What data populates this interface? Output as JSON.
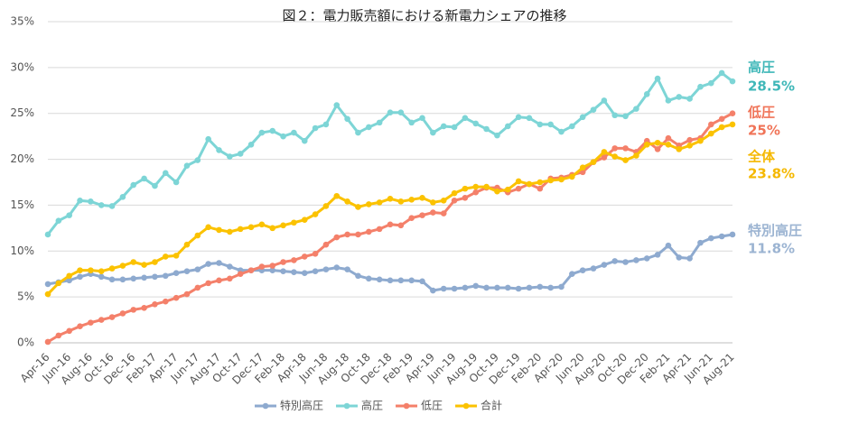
{
  "chart_data": {
    "type": "line",
    "title": "図２：電力販売額における新電力シェアの推移",
    "categories": [
      "Apr-16",
      null,
      "Jun-16",
      null,
      "Aug-16",
      null,
      "Oct-16",
      null,
      "Dec-16",
      null,
      "Feb-17",
      null,
      "Apr-17",
      null,
      "Jun-17",
      null,
      "Aug-17",
      null,
      "Oct-17",
      null,
      "Dec-17",
      null,
      "Feb-18",
      null,
      "Apr-18",
      null,
      "Jun-18",
      null,
      "Aug-18",
      null,
      "Oct-18",
      null,
      "Dec-18",
      null,
      "Feb-19",
      null,
      "Apr-19",
      null,
      "Jun-19",
      null,
      "Aug-19",
      null,
      "Oct-19",
      null,
      "Dec-19",
      null,
      "Feb-20",
      null,
      "Apr-20",
      null,
      "Jun-20",
      null,
      "Aug-20",
      null,
      "Oct-20",
      null,
      "Dec-20",
      null,
      "Feb-21",
      null,
      "Apr-21",
      null,
      "Jun-21",
      null,
      "Aug-21"
    ],
    "series": [
      {
        "name": "特別高圧",
        "color": "#8eaacf",
        "values": [
          6.4,
          6.6,
          6.8,
          7.2,
          7.5,
          7.2,
          6.9,
          6.9,
          7.0,
          7.1,
          7.2,
          7.3,
          7.6,
          7.8,
          8.0,
          8.6,
          8.7,
          8.3,
          7.9,
          7.9,
          7.9,
          7.9,
          7.8,
          7.7,
          7.6,
          7.8,
          8.0,
          8.2,
          8.0,
          7.3,
          7.0,
          6.9,
          6.8,
          6.8,
          6.8,
          6.7,
          5.7,
          5.9,
          5.9,
          6.0,
          6.2,
          6.0,
          6.0,
          6.0,
          5.9,
          6.0,
          6.1,
          6.0,
          6.1,
          7.5,
          7.9,
          8.1,
          8.5,
          8.9,
          8.8,
          9.0,
          9.2,
          9.6,
          10.6,
          9.3,
          9.2,
          10.9,
          11.4,
          11.6,
          11.8
        ]
      },
      {
        "name": "高圧",
        "color": "#7dd5d6",
        "values": [
          11.8,
          13.3,
          13.9,
          15.5,
          15.4,
          15.0,
          14.9,
          15.9,
          17.2,
          17.9,
          17.1,
          18.5,
          17.5,
          19.3,
          19.9,
          22.2,
          21.0,
          20.3,
          20.6,
          21.6,
          22.9,
          23.1,
          22.5,
          22.9,
          22.0,
          23.4,
          23.8,
          25.9,
          24.4,
          22.9,
          23.5,
          24.0,
          25.1,
          25.1,
          24.0,
          24.5,
          22.9,
          23.6,
          23.5,
          24.5,
          23.9,
          23.3,
          22.6,
          23.6,
          24.6,
          24.5,
          23.8,
          23.8,
          23.0,
          23.6,
          24.6,
          25.4,
          26.4,
          24.8,
          24.7,
          25.5,
          27.1,
          28.8,
          26.4,
          26.8,
          26.6,
          27.9,
          28.3,
          29.4,
          28.5
        ]
      },
      {
        "name": "低圧",
        "color": "#f4806a",
        "values": [
          0.1,
          0.8,
          1.3,
          1.8,
          2.2,
          2.5,
          2.8,
          3.2,
          3.6,
          3.8,
          4.2,
          4.5,
          4.9,
          5.3,
          6.0,
          6.5,
          6.8,
          7.0,
          7.5,
          7.9,
          8.3,
          8.4,
          8.8,
          9.0,
          9.4,
          9.7,
          10.7,
          11.5,
          11.8,
          11.8,
          12.1,
          12.4,
          12.9,
          12.8,
          13.6,
          13.9,
          14.2,
          14.1,
          15.5,
          15.8,
          16.4,
          16.9,
          16.9,
          16.4,
          16.8,
          17.3,
          16.8,
          17.9,
          18.0,
          18.3,
          18.6,
          19.7,
          20.2,
          21.2,
          21.2,
          20.8,
          22.0,
          21.1,
          22.3,
          21.5,
          22.1,
          22.3,
          23.8,
          24.4,
          25.0
        ]
      },
      {
        "name": "合計",
        "color": "#fbc200",
        "values": [
          5.3,
          6.5,
          7.3,
          7.9,
          7.9,
          7.8,
          8.1,
          8.4,
          8.8,
          8.5,
          8.8,
          9.4,
          9.5,
          10.7,
          11.7,
          12.6,
          12.3,
          12.1,
          12.4,
          12.6,
          12.9,
          12.5,
          12.8,
          13.1,
          13.4,
          14.0,
          14.9,
          16.0,
          15.4,
          14.8,
          15.1,
          15.3,
          15.7,
          15.4,
          15.6,
          15.8,
          15.3,
          15.5,
          16.3,
          16.8,
          17.0,
          17.0,
          16.5,
          16.7,
          17.6,
          17.3,
          17.5,
          17.7,
          17.8,
          18.1,
          19.1,
          19.7,
          20.8,
          20.3,
          19.9,
          20.4,
          21.6,
          21.8,
          21.6,
          21.1,
          21.5,
          22.0,
          22.8,
          23.5,
          23.8
        ]
      }
    ],
    "ylim": [
      0,
      35
    ],
    "yticks": [
      {
        "value": 0,
        "label": "0%"
      },
      {
        "value": 5,
        "label": "5%"
      },
      {
        "value": 10,
        "label": "10%"
      },
      {
        "value": 15,
        "label": "15%"
      },
      {
        "value": 20,
        "label": "20%"
      },
      {
        "value": 25,
        "label": "25%"
      },
      {
        "value": 30,
        "label": "30%"
      },
      {
        "value": 35,
        "label": "35%"
      }
    ],
    "grid": true,
    "legend": "bottom",
    "annotations": [
      {
        "name": "高圧",
        "text": "28.5%",
        "color": "#3fb7b8"
      },
      {
        "name": "低圧",
        "text": "25%",
        "color": "#f07458"
      },
      {
        "name": "全体",
        "text": "23.8%",
        "color": "#f5b800"
      },
      {
        "name": "特別高圧",
        "text": "11.8%",
        "color": "#9cb4d2"
      }
    ]
  }
}
